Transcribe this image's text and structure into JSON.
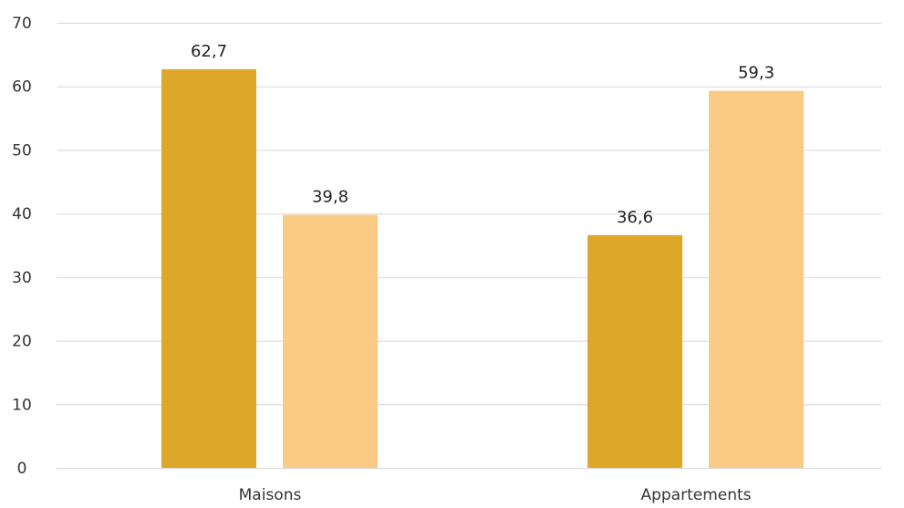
{
  "chart_data": {
    "type": "bar",
    "categories": [
      "Maisons",
      "Appartements"
    ],
    "series": [
      {
        "values": [
          62.7,
          36.6
        ],
        "labels": [
          "62,7",
          "36,6"
        ],
        "color": "#DDA72A"
      },
      {
        "values": [
          39.8,
          59.3
        ],
        "labels": [
          "39,8",
          "59,3"
        ],
        "color": "#FBCB86"
      }
    ],
    "ylim": [
      0,
      70
    ],
    "yticks": [
      0,
      10,
      20,
      30,
      40,
      50,
      60,
      70
    ],
    "ytick_labels": [
      "0",
      "10",
      "20",
      "30",
      "40",
      "50",
      "60",
      "70"
    ],
    "grid": true,
    "legend": "none",
    "title": "",
    "xlabel": "",
    "ylabel": ""
  }
}
